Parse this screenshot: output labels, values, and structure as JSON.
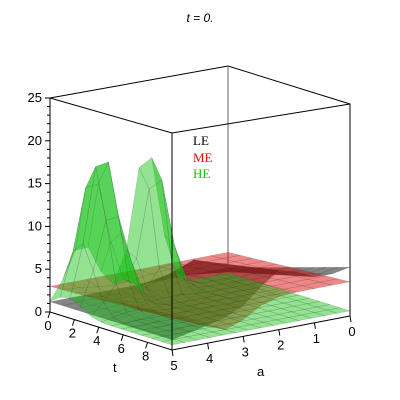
{
  "title": "t = 0.",
  "chart_data": {
    "type": "surface3d",
    "title": "t = 0.",
    "xlabel": "t",
    "ylabel": "a",
    "zlabel": "",
    "x_ticks": [
      "0",
      "2",
      "4",
      "6",
      "8"
    ],
    "y_ticks": [
      "5",
      "4",
      "3",
      "2",
      "1",
      "0"
    ],
    "z_ticks": [
      "0",
      "5",
      "10",
      "15",
      "20",
      "25"
    ],
    "xlim": [
      0,
      10
    ],
    "ylim": [
      0,
      5
    ],
    "zlim": [
      0,
      25
    ],
    "legend": [
      "LE",
      "ME",
      "HE"
    ],
    "legend_placement": "upper-center",
    "series": [
      {
        "name": "LE",
        "color": "#000000",
        "peak_values": [
          3.5,
          4.5,
          5.5,
          6.5
        ],
        "description_values": {
          "t0_a5": 1.2,
          "t10_a0": 5.8
        }
      },
      {
        "name": "ME",
        "color": "#e01010",
        "peak_values": [
          3.2,
          4.0,
          4.6,
          5.0
        ],
        "description_values": {
          "t0_a5": 3.0,
          "t10_a0": 4.2
        }
      },
      {
        "name": "HE",
        "color": "#10c010",
        "peak_values": [
          19.0,
          20.0
        ],
        "description_values": {
          "t0_a5": 0.5,
          "t10_a0": 0.8
        }
      }
    ]
  }
}
